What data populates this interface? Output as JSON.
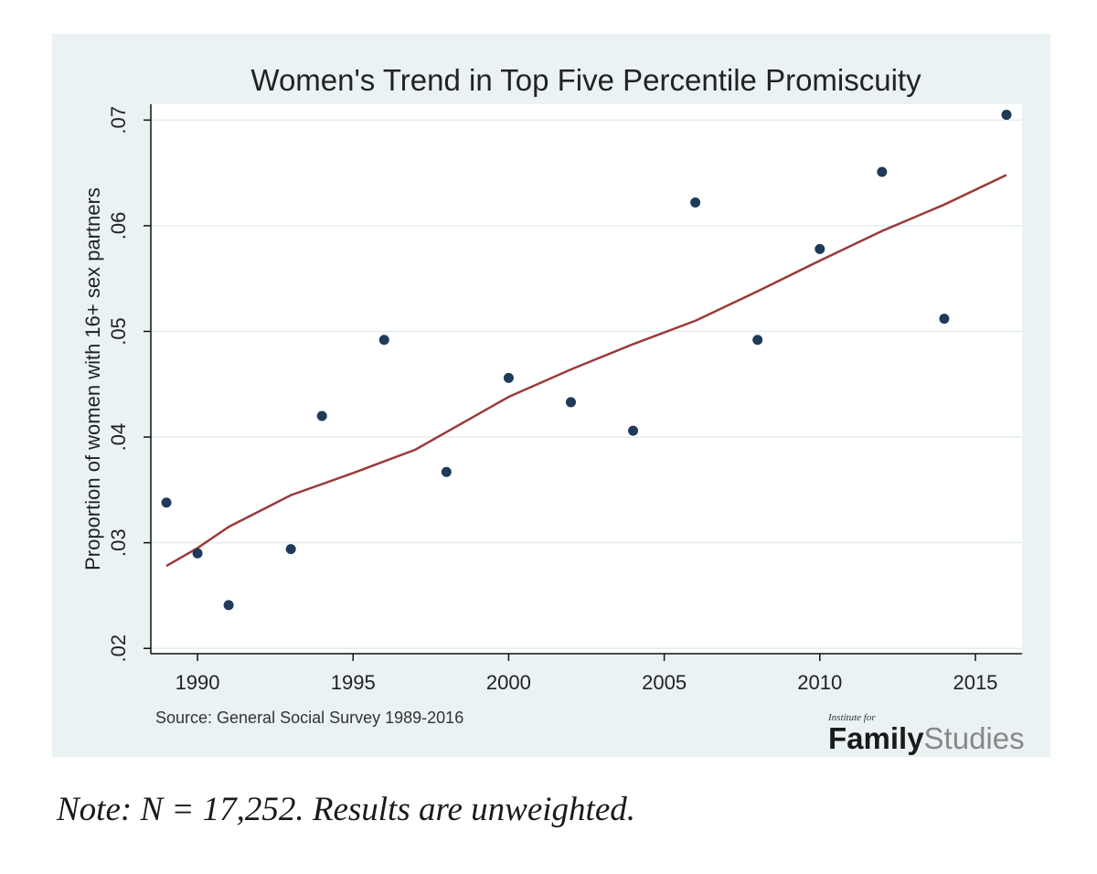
{
  "chart_data": {
    "type": "scatter",
    "title": "Women's Trend in Top Five Percentile Promiscuity",
    "ylabel": "Proportion of women with 16+ sex partners",
    "xlabel": "",
    "source": "Source: General Social Survey 1989-2016",
    "xlim": [
      1988.5,
      2016.5
    ],
    "ylim": [
      0.0195,
      0.0715
    ],
    "x_ticks": [
      1990,
      1995,
      2000,
      2005,
      2010,
      2015
    ],
    "y_ticks": [
      0.02,
      0.03,
      0.04,
      0.05,
      0.06,
      0.07
    ],
    "y_tick_labels": [
      ".02",
      ".03",
      ".04",
      ".05",
      ".06",
      ".07"
    ],
    "grid": true,
    "points": {
      "x": [
        1989,
        1990,
        1991,
        1993,
        1994,
        1996,
        1998,
        2000,
        2002,
        2004,
        2006,
        2008,
        2010,
        2012,
        2014,
        2016
      ],
      "y": [
        0.0338,
        0.029,
        0.0241,
        0.0294,
        0.042,
        0.0492,
        0.0367,
        0.0456,
        0.0433,
        0.0406,
        0.0622,
        0.0492,
        0.0578,
        0.0651,
        0.0512,
        0.0705
      ],
      "color": "#1f3a5a"
    },
    "trend_line": {
      "x": [
        1989,
        1990,
        1991,
        1993,
        1995,
        1997,
        2000,
        2002,
        2004,
        2006,
        2008,
        2010,
        2012,
        2014,
        2016
      ],
      "y": [
        0.0278,
        0.0295,
        0.0315,
        0.0345,
        0.0366,
        0.0388,
        0.0438,
        0.0464,
        0.0488,
        0.051,
        0.0538,
        0.0567,
        0.0595,
        0.062,
        0.0648
      ],
      "color": "#9b3a3a"
    }
  },
  "colors": {
    "figure_background": "#eaf2f3",
    "plot_background": "#ffffff",
    "grid": "#e4ecef"
  },
  "logo": {
    "small": "Institute for",
    "bold": "Family",
    "light": "Studies"
  },
  "note": "Note: N = 17,252. Results are unweighted."
}
